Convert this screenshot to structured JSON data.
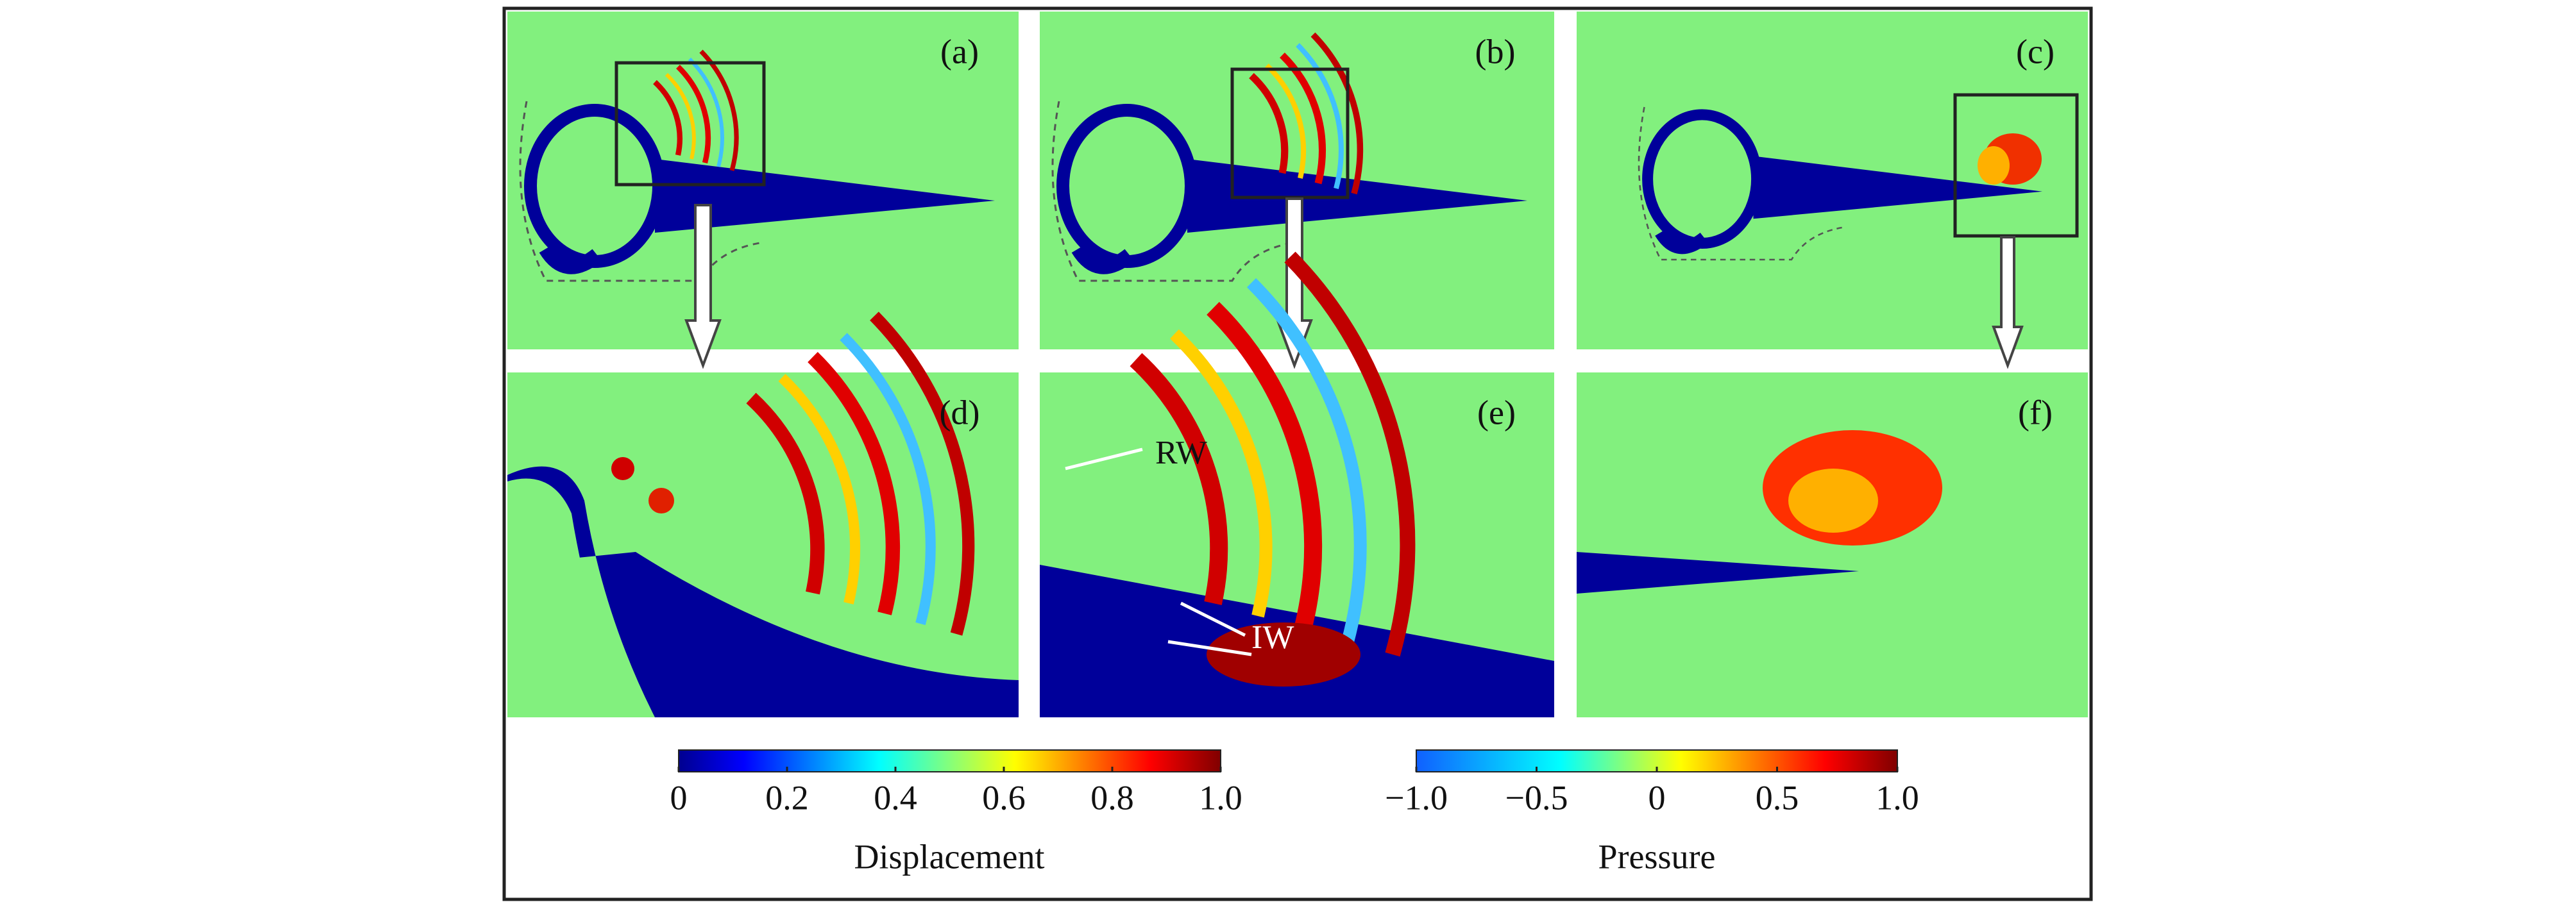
{
  "figure": {
    "panels": [
      {
        "label": "(a)"
      },
      {
        "label": "(b)"
      },
      {
        "label": "(c)"
      },
      {
        "label": "(d)"
      },
      {
        "label": "(e)"
      },
      {
        "label": "(f)"
      }
    ],
    "annotations": [
      "RW",
      "IW"
    ],
    "colorbars": [
      {
        "label": "Displacement",
        "lim": [
          0,
          1
        ],
        "ticks": [
          0,
          0.2,
          0.4,
          0.6,
          0.8,
          {
            "value": 1,
            "label": "1.0"
          }
        ]
      },
      {
        "label": "Pressure",
        "lim": [
          -1,
          1
        ],
        "ticks": [
          {
            "value": -1,
            "label": "−1.0"
          },
          {
            "value": -0.5,
            "label": "−0.5"
          },
          0,
          0.5,
          {
            "value": 1,
            "label": "1.0"
          }
        ]
      }
    ]
  }
}
